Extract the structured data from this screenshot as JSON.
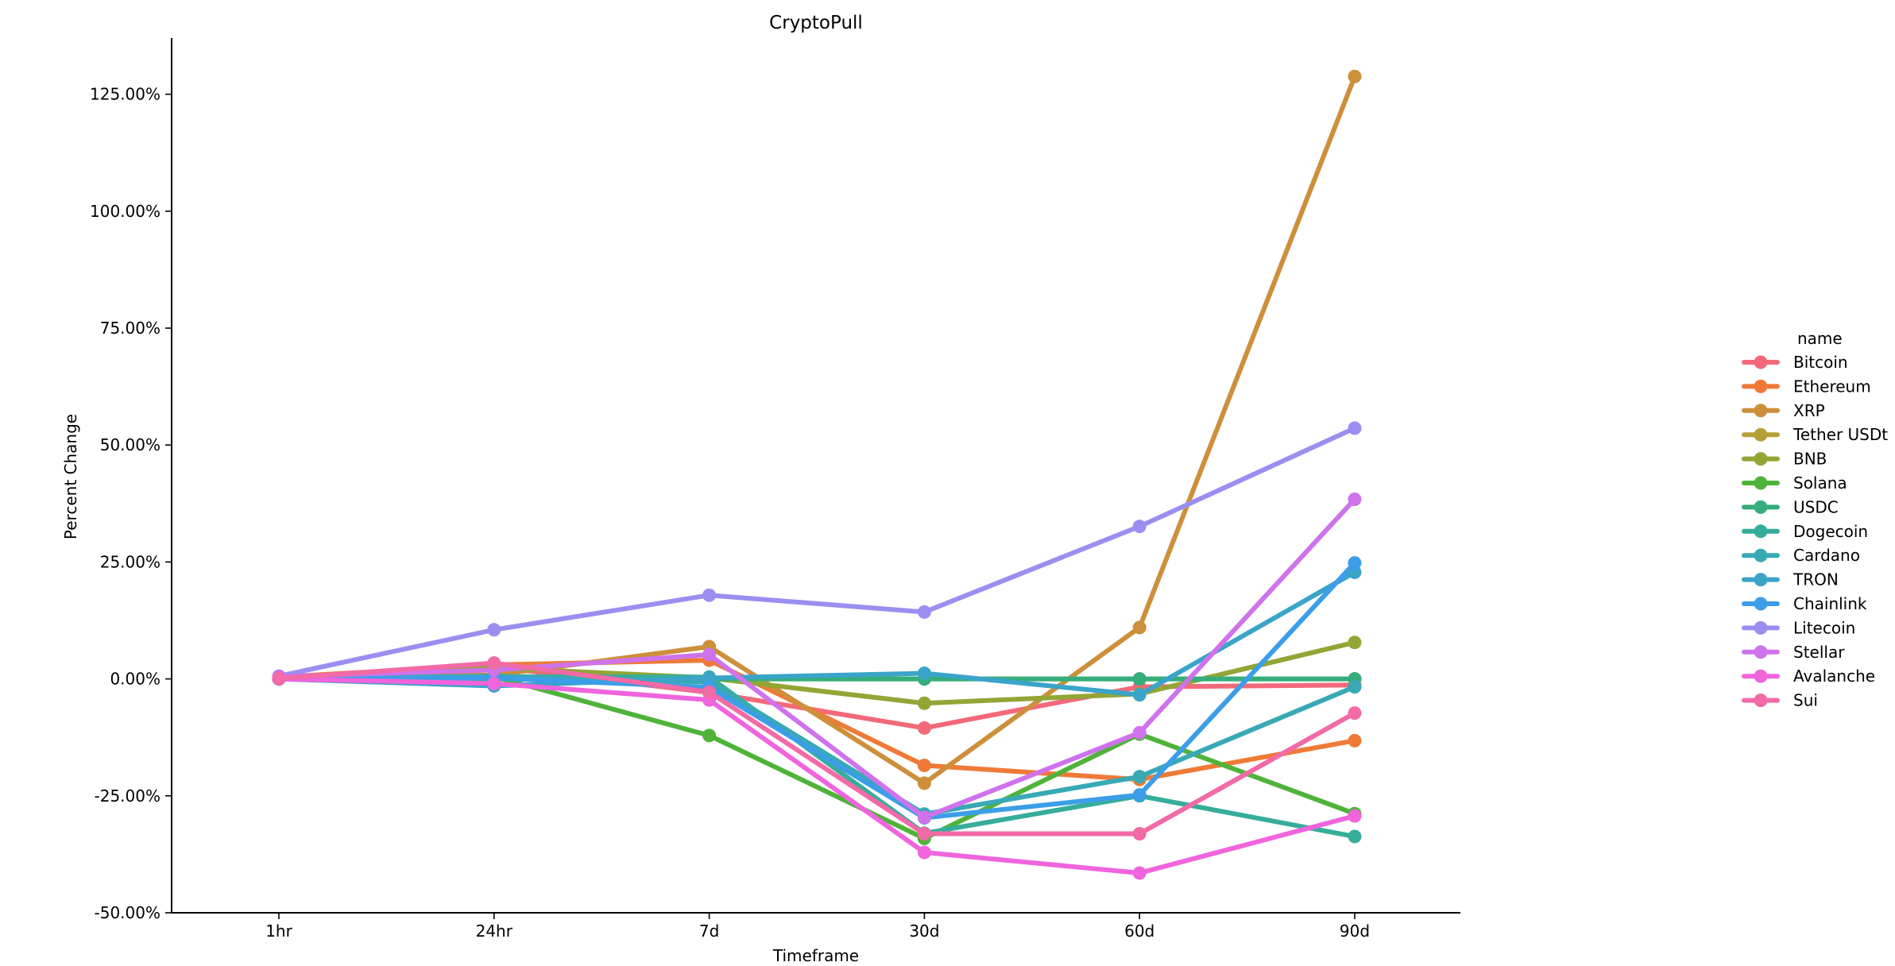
{
  "chart_data": {
    "type": "line",
    "title": "CryptoPull",
    "xlabel": "Timeframe",
    "ylabel": "Percent Change",
    "categories": [
      "1hr",
      "24hr",
      "7d",
      "30d",
      "60d",
      "90d"
    ],
    "ylim": [
      -50,
      137
    ],
    "yticks": [
      -50,
      -25,
      0,
      25,
      50,
      75,
      100,
      125
    ],
    "ytick_labels": [
      "-50.00%",
      "-25.00%",
      "0.00%",
      "25.00%",
      "50.00%",
      "75.00%",
      "100.00%",
      "125.00%"
    ],
    "grid": false,
    "legend": {
      "title": "name",
      "position": "right"
    },
    "series": [
      {
        "name": "Bitcoin",
        "color": "#f2697a",
        "values": [
          0.3,
          2.6,
          -2.9,
          -10.5,
          -1.7,
          -1.3
        ]
      },
      {
        "name": "Ethereum",
        "color": "#ef7a37",
        "values": [
          0.4,
          3.0,
          4.0,
          -18.5,
          -21.5,
          -13.2
        ]
      },
      {
        "name": "XRP",
        "color": "#cd8f3a",
        "values": [
          0.4,
          0.8,
          6.9,
          -22.3,
          11.0,
          128.8
        ]
      },
      {
        "name": "Tether USDt",
        "color": "#b5a038",
        "values": [
          0.0,
          0.0,
          0.0,
          0.0,
          0.0,
          0.0
        ]
      },
      {
        "name": "BNB",
        "color": "#93a535",
        "values": [
          0.2,
          2.4,
          0.2,
          -5.2,
          -3.2,
          7.8
        ]
      },
      {
        "name": "Solana",
        "color": "#4fb33a",
        "values": [
          0.2,
          0.5,
          -12.1,
          -34.1,
          -11.8,
          -28.8
        ]
      },
      {
        "name": "USDC",
        "color": "#35ae7c",
        "values": [
          0.0,
          0.0,
          0.0,
          0.0,
          0.0,
          0.0
        ]
      },
      {
        "name": "Dogecoin",
        "color": "#36ad9b",
        "values": [
          0.0,
          0.5,
          0.4,
          -33.0,
          -25.0,
          -33.7
        ]
      },
      {
        "name": "Cardano",
        "color": "#38a9b5",
        "values": [
          0.0,
          0.6,
          -0.7,
          -28.9,
          -20.9,
          -1.7
        ]
      },
      {
        "name": "TRON",
        "color": "#3aa4c9",
        "values": [
          0.0,
          -1.5,
          0.2,
          1.2,
          -3.4,
          22.8
        ]
      },
      {
        "name": "Chainlink",
        "color": "#3c9ee8",
        "values": [
          0.0,
          0.2,
          -1.8,
          -29.7,
          -24.8,
          24.8
        ]
      },
      {
        "name": "Litecoin",
        "color": "#9a8ff0",
        "values": [
          0.6,
          10.5,
          17.9,
          14.3,
          32.6,
          53.6
        ]
      },
      {
        "name": "Stellar",
        "color": "#cf72ec",
        "values": [
          0.5,
          1.9,
          5.2,
          -29.6,
          -11.5,
          38.4
        ]
      },
      {
        "name": "Avalanche",
        "color": "#f064dd",
        "values": [
          0.0,
          -1.0,
          -4.5,
          -37.1,
          -41.5,
          -29.3
        ]
      },
      {
        "name": "Sui",
        "color": "#f26aa6",
        "values": [
          0.1,
          3.4,
          -2.8,
          -33.1,
          -33.1,
          -7.3
        ]
      }
    ]
  }
}
